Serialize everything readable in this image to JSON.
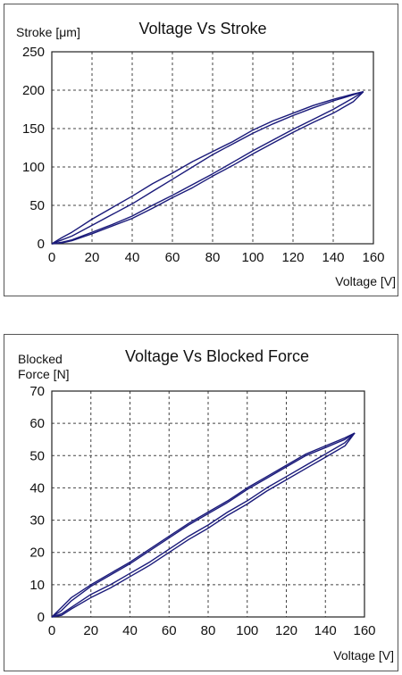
{
  "chart_data": [
    {
      "type": "line",
      "title": "Voltage Vs Stroke",
      "xlabel": "Voltage [V]",
      "ylabel": "Stroke [μm]",
      "xlim": [
        0,
        160
      ],
      "ylim": [
        0,
        250
      ],
      "xticks": [
        "0",
        "20",
        "40",
        "60",
        "80",
        "100",
        "120",
        "140",
        "160"
      ],
      "yticks": [
        "0",
        "50",
        "100",
        "150",
        "200",
        "250"
      ],
      "grid": true,
      "series": [
        {
          "x": [
            0,
            5,
            10,
            20,
            30,
            40,
            50,
            60,
            70,
            80,
            90,
            100,
            110,
            120,
            130,
            140,
            150,
            155
          ],
          "y": [
            0,
            8,
            15,
            32,
            47,
            62,
            78,
            92,
            107,
            120,
            133,
            148,
            160,
            170,
            180,
            188,
            195,
            198
          ]
        },
        {
          "x": [
            0,
            5,
            10,
            20,
            30,
            40,
            50,
            60,
            70,
            80,
            90,
            100,
            110,
            120,
            130,
            140,
            150,
            155
          ],
          "y": [
            0,
            5,
            10,
            24,
            38,
            52,
            68,
            84,
            100,
            116,
            130,
            144,
            156,
            167,
            177,
            186,
            194,
            198
          ]
        },
        {
          "x": [
            0,
            5,
            10,
            20,
            30,
            40,
            50,
            60,
            70,
            80,
            90,
            100,
            110,
            120,
            130,
            140,
            150,
            155
          ],
          "y": [
            0,
            2,
            5,
            15,
            25,
            36,
            50,
            63,
            77,
            91,
            106,
            121,
            135,
            149,
            162,
            175,
            190,
            198
          ]
        },
        {
          "x": [
            0,
            5,
            10,
            20,
            30,
            40,
            50,
            60,
            70,
            80,
            90,
            100,
            110,
            120,
            130,
            140,
            150,
            155
          ],
          "y": [
            0,
            1,
            4,
            13,
            23,
            33,
            46,
            60,
            73,
            88,
            102,
            117,
            131,
            145,
            158,
            170,
            185,
            198
          ]
        }
      ]
    },
    {
      "type": "line",
      "title": "Voltage Vs Blocked Force",
      "xlabel": "Voltage [V]",
      "ylabel": "Blocked Force [N]",
      "ylabel_lines": [
        "Blocked",
        "Force [N]"
      ],
      "xlim": [
        0,
        160
      ],
      "ylim": [
        0,
        70
      ],
      "xticks": [
        "0",
        "20",
        "40",
        "60",
        "80",
        "100",
        "120",
        "140",
        "160"
      ],
      "yticks": [
        "0",
        "10",
        "20",
        "30",
        "40",
        "50",
        "60",
        "70"
      ],
      "grid": true,
      "series": [
        {
          "x": [
            0,
            5,
            10,
            20,
            30,
            40,
            50,
            60,
            70,
            80,
            90,
            100,
            110,
            120,
            130,
            140,
            150,
            155
          ],
          "y": [
            0,
            3,
            6,
            10,
            13.5,
            17,
            21,
            25,
            29,
            32.5,
            36,
            40,
            43.5,
            47,
            50.5,
            53,
            55.5,
            57
          ]
        },
        {
          "x": [
            0,
            5,
            10,
            20,
            30,
            40,
            50,
            60,
            70,
            80,
            90,
            100,
            110,
            120,
            130,
            140,
            150,
            155
          ],
          "y": [
            0,
            2,
            5,
            9.5,
            13,
            16.5,
            20.5,
            24.5,
            28.5,
            32,
            35.5,
            39.5,
            43,
            46.5,
            50,
            52.5,
            55,
            57
          ]
        },
        {
          "x": [
            0,
            5,
            10,
            20,
            30,
            40,
            50,
            60,
            70,
            80,
            90,
            100,
            110,
            120,
            130,
            140,
            150,
            155
          ],
          "y": [
            0,
            1,
            3,
            7,
            10,
            13.5,
            17,
            21,
            25,
            28.5,
            32.5,
            36,
            40,
            43.5,
            47,
            50.5,
            54,
            57
          ]
        },
        {
          "x": [
            0,
            5,
            10,
            20,
            30,
            40,
            50,
            60,
            70,
            80,
            90,
            100,
            110,
            120,
            130,
            140,
            150,
            155
          ],
          "y": [
            0,
            0.5,
            2.5,
            6,
            9,
            12.5,
            16,
            20,
            24,
            27.5,
            31.5,
            35,
            39,
            42.5,
            46,
            49.5,
            53,
            57
          ]
        }
      ]
    }
  ]
}
